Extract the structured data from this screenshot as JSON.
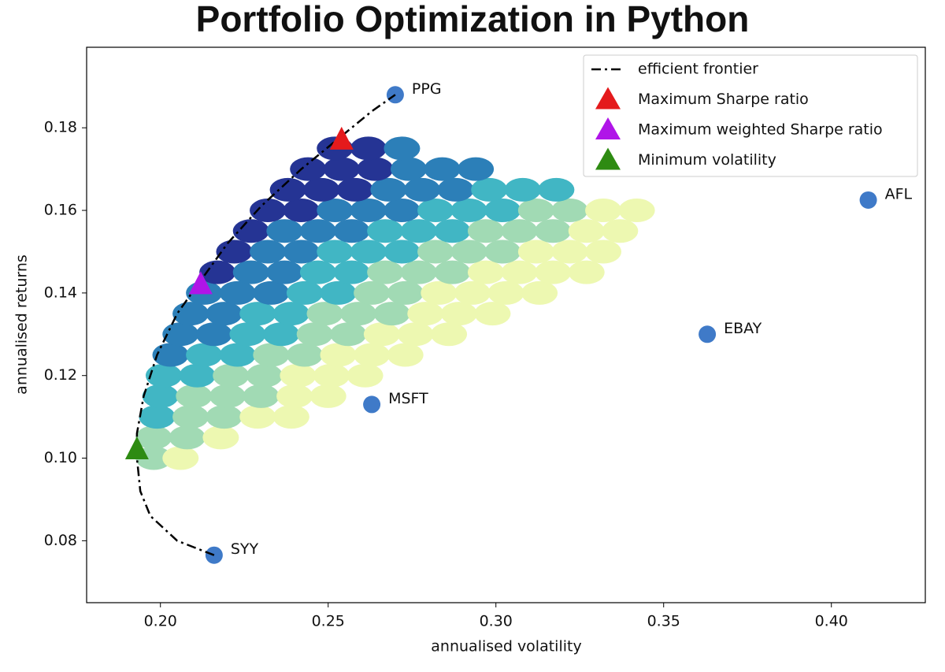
{
  "chart_data": {
    "type": "scatter",
    "title": "Portfolio Optimization in Python",
    "xlabel": "annualised volatility",
    "ylabel": "annualised returns",
    "xlim": [
      0.178,
      0.428
    ],
    "ylim": [
      0.065,
      0.1995
    ],
    "xticks": [
      {
        "value": 0.2,
        "label": "0.20"
      },
      {
        "value": 0.25,
        "label": "0.25"
      },
      {
        "value": 0.3,
        "label": "0.30"
      },
      {
        "value": 0.35,
        "label": "0.35"
      },
      {
        "value": 0.4,
        "label": "0.40"
      }
    ],
    "yticks": [
      {
        "value": 0.08,
        "label": "0.08"
      },
      {
        "value": 0.1,
        "label": "0.10"
      },
      {
        "value": 0.12,
        "label": "0.12"
      },
      {
        "value": 0.14,
        "label": "0.14"
      },
      {
        "value": 0.16,
        "label": "0.16"
      },
      {
        "value": 0.18,
        "label": "0.18"
      }
    ],
    "legend": "upper right",
    "portfolios": {
      "x": [
        0.198,
        0.206,
        0.198,
        0.208,
        0.218,
        0.199,
        0.209,
        0.219,
        0.229,
        0.239,
        0.2,
        0.21,
        0.22,
        0.23,
        0.24,
        0.25,
        0.201,
        0.211,
        0.221,
        0.231,
        0.241,
        0.251,
        0.261,
        0.203,
        0.213,
        0.223,
        0.233,
        0.243,
        0.253,
        0.263,
        0.273,
        0.206,
        0.216,
        0.226,
        0.236,
        0.246,
        0.256,
        0.266,
        0.276,
        0.286,
        0.209,
        0.219,
        0.229,
        0.239,
        0.249,
        0.259,
        0.269,
        0.279,
        0.289,
        0.299,
        0.213,
        0.223,
        0.233,
        0.243,
        0.253,
        0.263,
        0.273,
        0.283,
        0.293,
        0.303,
        0.313,
        0.217,
        0.227,
        0.237,
        0.247,
        0.257,
        0.267,
        0.277,
        0.287,
        0.297,
        0.307,
        0.317,
        0.327,
        0.222,
        0.232,
        0.242,
        0.252,
        0.262,
        0.272,
        0.282,
        0.292,
        0.302,
        0.312,
        0.322,
        0.332,
        0.227,
        0.237,
        0.247,
        0.257,
        0.267,
        0.277,
        0.287,
        0.297,
        0.307,
        0.317,
        0.327,
        0.337,
        0.232,
        0.242,
        0.252,
        0.262,
        0.272,
        0.282,
        0.292,
        0.302,
        0.312,
        0.322,
        0.332,
        0.342,
        0.238,
        0.248,
        0.258,
        0.268,
        0.278,
        0.288,
        0.298,
        0.308,
        0.318,
        0.244,
        0.254,
        0.264,
        0.274,
        0.284,
        0.294,
        0.252,
        0.262,
        0.272
      ],
      "y": [
        0.1,
        0.1,
        0.105,
        0.105,
        0.105,
        0.11,
        0.11,
        0.11,
        0.11,
        0.11,
        0.115,
        0.115,
        0.115,
        0.115,
        0.115,
        0.115,
        0.12,
        0.12,
        0.12,
        0.12,
        0.12,
        0.12,
        0.12,
        0.125,
        0.125,
        0.125,
        0.125,
        0.125,
        0.125,
        0.125,
        0.125,
        0.13,
        0.13,
        0.13,
        0.13,
        0.13,
        0.13,
        0.13,
        0.13,
        0.13,
        0.135,
        0.135,
        0.135,
        0.135,
        0.135,
        0.135,
        0.135,
        0.135,
        0.135,
        0.135,
        0.14,
        0.14,
        0.14,
        0.14,
        0.14,
        0.14,
        0.14,
        0.14,
        0.14,
        0.14,
        0.14,
        0.145,
        0.145,
        0.145,
        0.145,
        0.145,
        0.145,
        0.145,
        0.145,
        0.145,
        0.145,
        0.145,
        0.145,
        0.15,
        0.15,
        0.15,
        0.15,
        0.15,
        0.15,
        0.15,
        0.15,
        0.15,
        0.15,
        0.15,
        0.15,
        0.155,
        0.155,
        0.155,
        0.155,
        0.155,
        0.155,
        0.155,
        0.155,
        0.155,
        0.155,
        0.155,
        0.155,
        0.16,
        0.16,
        0.16,
        0.16,
        0.16,
        0.16,
        0.16,
        0.16,
        0.16,
        0.16,
        0.16,
        0.16,
        0.165,
        0.165,
        0.165,
        0.165,
        0.165,
        0.165,
        0.165,
        0.165,
        0.165,
        0.17,
        0.17,
        0.17,
        0.17,
        0.17,
        0.17,
        0.175,
        0.175,
        0.175
      ],
      "colors": [
        "#a1dab4",
        "#edf8b1",
        "#a1dab4",
        "#a1dab4",
        "#edf8b1",
        "#41b6c4",
        "#a1dab4",
        "#a1dab4",
        "#edf8b1",
        "#edf8b1",
        "#41b6c4",
        "#a1dab4",
        "#a1dab4",
        "#a1dab4",
        "#edf8b1",
        "#edf8b1",
        "#41b6c4",
        "#41b6c4",
        "#a1dab4",
        "#a1dab4",
        "#edf8b1",
        "#edf8b1",
        "#edf8b1",
        "#2c7fb8",
        "#41b6c4",
        "#41b6c4",
        "#a1dab4",
        "#a1dab4",
        "#edf8b1",
        "#edf8b1",
        "#edf8b1",
        "#2c7fb8",
        "#2c7fb8",
        "#41b6c4",
        "#41b6c4",
        "#a1dab4",
        "#a1dab4",
        "#edf8b1",
        "#edf8b1",
        "#edf8b1",
        "#2c7fb8",
        "#2c7fb8",
        "#41b6c4",
        "#41b6c4",
        "#a1dab4",
        "#a1dab4",
        "#a1dab4",
        "#edf8b1",
        "#edf8b1",
        "#edf8b1",
        "#2c7fb8",
        "#2c7fb8",
        "#2c7fb8",
        "#41b6c4",
        "#41b6c4",
        "#a1dab4",
        "#a1dab4",
        "#edf8b1",
        "#edf8b1",
        "#edf8b1",
        "#edf8b1",
        "#253494",
        "#2c7fb8",
        "#2c7fb8",
        "#41b6c4",
        "#41b6c4",
        "#a1dab4",
        "#a1dab4",
        "#a1dab4",
        "#edf8b1",
        "#edf8b1",
        "#edf8b1",
        "#edf8b1",
        "#253494",
        "#2c7fb8",
        "#2c7fb8",
        "#41b6c4",
        "#41b6c4",
        "#41b6c4",
        "#a1dab4",
        "#a1dab4",
        "#a1dab4",
        "#edf8b1",
        "#edf8b1",
        "#edf8b1",
        "#253494",
        "#2c7fb8",
        "#2c7fb8",
        "#2c7fb8",
        "#41b6c4",
        "#41b6c4",
        "#41b6c4",
        "#a1dab4",
        "#a1dab4",
        "#a1dab4",
        "#edf8b1",
        "#edf8b1",
        "#253494",
        "#253494",
        "#2c7fb8",
        "#2c7fb8",
        "#2c7fb8",
        "#41b6c4",
        "#41b6c4",
        "#41b6c4",
        "#a1dab4",
        "#a1dab4",
        "#edf8b1",
        "#edf8b1",
        "#253494",
        "#253494",
        "#253494",
        "#2c7fb8",
        "#2c7fb8",
        "#2c7fb8",
        "#41b6c4",
        "#41b6c4",
        "#41b6c4",
        "#253494",
        "#253494",
        "#253494",
        "#2c7fb8",
        "#2c7fb8",
        "#2c7fb8",
        "#253494",
        "#253494",
        "#2c7fb8"
      ]
    },
    "series": [
      {
        "name": "efficient frontier",
        "color": "#000000",
        "linestyle": "dashdot",
        "x": [
          0.216,
          0.205,
          0.197,
          0.194,
          0.193,
          0.193,
          0.195,
          0.199,
          0.205,
          0.212,
          0.22,
          0.23,
          0.242,
          0.254,
          0.263,
          0.27
        ],
        "y": [
          0.0765,
          0.08,
          0.086,
          0.092,
          0.1,
          0.106,
          0.115,
          0.125,
          0.135,
          0.143,
          0.152,
          0.161,
          0.17,
          0.178,
          0.184,
          0.188
        ]
      },
      {
        "name": "Maximum Sharpe ratio",
        "color": "#e41a1c",
        "marker": "triangle",
        "x": [
          0.254
        ],
        "y": [
          0.177
        ]
      },
      {
        "name": "Maximum weighted Sharpe ratio",
        "color": "#b015e8",
        "marker": "triangle",
        "x": [
          0.212
        ],
        "y": [
          0.142
        ]
      },
      {
        "name": "Minimum volatility",
        "color": "#2e8b12",
        "marker": "triangle",
        "x": [
          0.193
        ],
        "y": [
          0.102
        ]
      }
    ],
    "assets": {
      "color": "#3f7ac8",
      "labels": [
        "PPG",
        "AFL",
        "EBAY",
        "MSFT",
        "SYY"
      ],
      "x": [
        0.27,
        0.411,
        0.363,
        0.263,
        0.216
      ],
      "y": [
        0.188,
        0.1625,
        0.13,
        0.113,
        0.0765
      ]
    }
  }
}
